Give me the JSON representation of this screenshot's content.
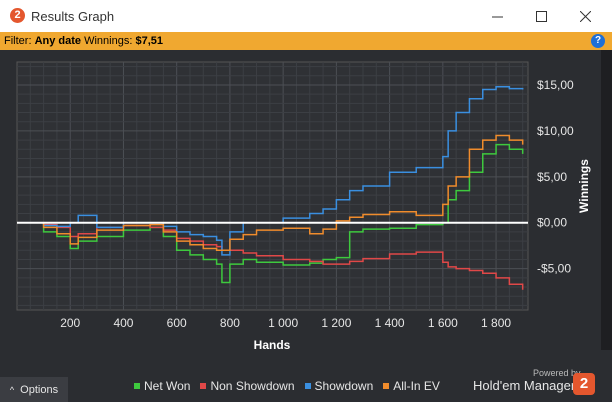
{
  "window": {
    "title": "Results Graph",
    "logo_text": "2",
    "minimize_icon": "minimize-icon",
    "maximize_icon": "maximize-icon",
    "close_icon": "close-icon"
  },
  "filter": {
    "label": "Filter:",
    "value": "Any date",
    "winnings_label": "Winnings:",
    "winnings_value": "$7,51",
    "help_text": "?"
  },
  "chart_data": {
    "type": "line",
    "title": "",
    "xlabel": "Hands",
    "ylabel": "Winnings",
    "xlim": [
      0,
      1920
    ],
    "ylim": [
      -9.5,
      17.5
    ],
    "x_ticks": [
      200,
      400,
      600,
      800,
      1000,
      1200,
      1400,
      1600,
      1800
    ],
    "x_tick_labels": [
      "200",
      "400",
      "600",
      "800",
      "1 000",
      "1 200",
      "1 400",
      "1 600",
      "1 800"
    ],
    "y_ticks": [
      15,
      10,
      5,
      0,
      -5
    ],
    "y_tick_labels": [
      "$15,00",
      "$10,00",
      "$5,00",
      "$0,00",
      "-$5,00"
    ],
    "zero_line": true,
    "grid": true,
    "x": [
      0,
      100,
      150,
      200,
      230,
      300,
      400,
      500,
      550,
      600,
      650,
      700,
      750,
      770,
      800,
      850,
      900,
      1000,
      1100,
      1150,
      1200,
      1250,
      1300,
      1400,
      1500,
      1600,
      1620,
      1650,
      1700,
      1750,
      1800,
      1850,
      1900
    ],
    "series": [
      {
        "name": "Net Won",
        "color": "#3ec93e",
        "values": [
          0,
          -1.0,
          -1.5,
          -2.8,
          -2.0,
          -1.5,
          -0.8,
          -0.5,
          -1.5,
          -3.0,
          -3.5,
          -4.0,
          -4.5,
          -6.5,
          -4.5,
          -4.0,
          -4.3,
          -4.6,
          -4.4,
          -4.0,
          -3.8,
          -1.0,
          -0.7,
          -0.6,
          -0.2,
          0,
          2.5,
          3.5,
          5.5,
          7.5,
          8.5,
          8.0,
          7.5
        ]
      },
      {
        "name": "Non Showdown",
        "color": "#e04848",
        "values": [
          0,
          -0.2,
          -0.5,
          -1.5,
          -1.2,
          -0.5,
          -0.3,
          -0.5,
          -0.8,
          -1.7,
          -2.0,
          -2.4,
          -2.6,
          -3.0,
          -3.0,
          -3.3,
          -3.6,
          -4.0,
          -4.2,
          -4.5,
          -4.5,
          -4.2,
          -3.9,
          -3.4,
          -3.2,
          -4.3,
          -4.8,
          -5.0,
          -5.2,
          -5.5,
          -6.0,
          -6.7,
          -7.3
        ]
      },
      {
        "name": "Showdown",
        "color": "#3a8fe0",
        "values": [
          0,
          -0.3,
          -0.4,
          0,
          0.8,
          -0.5,
          0,
          0,
          -0.4,
          -1.0,
          -1.3,
          -1.5,
          -1.9,
          -3.5,
          -1.0,
          0,
          0,
          0.5,
          1.0,
          1.5,
          2.5,
          3.5,
          4.0,
          5.5,
          6.0,
          7.2,
          10.0,
          12.0,
          13.5,
          14.5,
          14.8,
          14.6,
          14.5
        ]
      },
      {
        "name": "All-In EV",
        "color": "#f08c2c",
        "values": [
          0,
          -0.5,
          -1.2,
          -2.3,
          -1.6,
          -0.8,
          -0.3,
          -0.2,
          -1.0,
          -2.0,
          -2.4,
          -2.8,
          -3.0,
          -3.0,
          -1.8,
          -1.3,
          -0.8,
          -0.6,
          -1.2,
          -0.7,
          0.2,
          0.6,
          0.9,
          1.2,
          0.8,
          2.0,
          4.0,
          5.0,
          8.0,
          9.0,
          9.5,
          9.0,
          8.5
        ]
      }
    ]
  },
  "footer": {
    "options_label": "Options",
    "options_icon": "chevron-up-icon",
    "powered_by": "Powered by",
    "brand": "Hold'em Manager",
    "brand_logo_text": "2"
  }
}
